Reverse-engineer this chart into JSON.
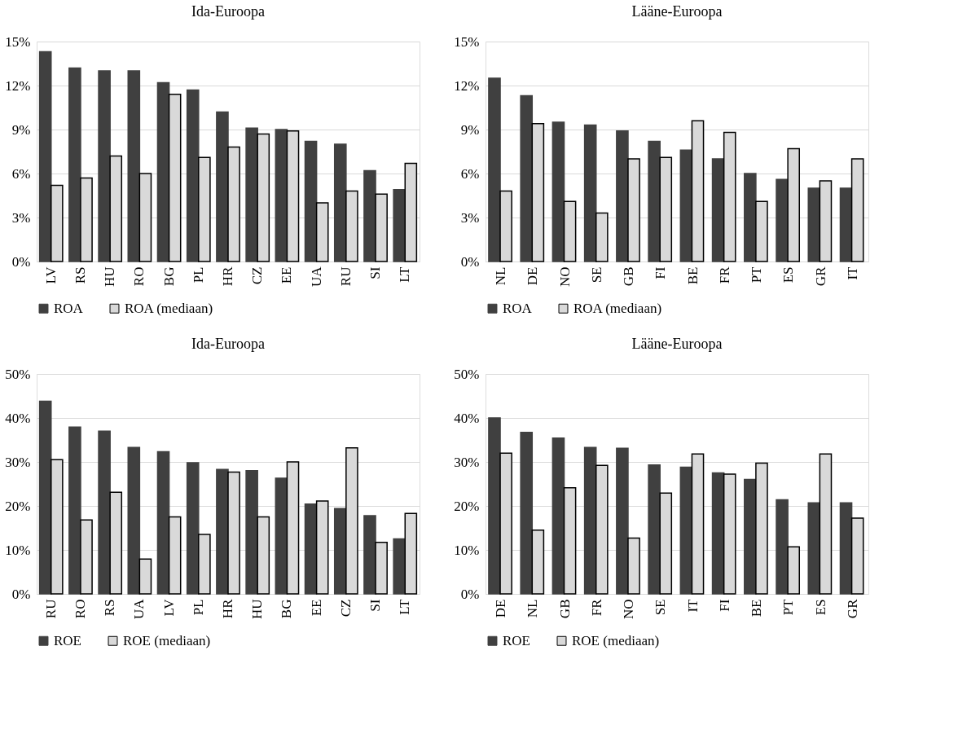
{
  "chart_data": [
    {
      "type": "bar",
      "title": "Ida-Euroopa",
      "categories": [
        "LV",
        "RS",
        "HU",
        "RO",
        "BG",
        "PL",
        "HR",
        "CZ",
        "EE",
        "UA",
        "RU",
        "SI",
        "LT"
      ],
      "series": [
        {
          "name": "ROA",
          "color": "#404040",
          "values": [
            14.3,
            13.2,
            13.0,
            13.0,
            12.2,
            11.7,
            10.2,
            9.1,
            9.0,
            8.2,
            8.0,
            6.2,
            4.9
          ]
        },
        {
          "name": "ROA (mediaan)",
          "color": "#d9d9d9",
          "values": [
            5.2,
            5.7,
            7.2,
            6.0,
            11.4,
            7.1,
            7.8,
            8.7,
            8.9,
            4.0,
            4.8,
            4.6,
            6.7
          ]
        }
      ],
      "ylim": [
        0,
        15
      ],
      "yticks": [
        {
          "value": 0,
          "label": "0%"
        },
        {
          "value": 3,
          "label": "3%"
        },
        {
          "value": 6,
          "label": "6%"
        },
        {
          "value": 9,
          "label": "9%"
        },
        {
          "value": 12,
          "label": "12%"
        },
        {
          "value": 15,
          "label": "15%"
        }
      ],
      "grid": "y",
      "legend": "bottom"
    },
    {
      "type": "bar",
      "title": "Lääne-Euroopa",
      "categories": [
        "NL",
        "DE",
        "NO",
        "SE",
        "GB",
        "FI",
        "BE",
        "FR",
        "PT",
        "ES",
        "GR",
        "IT"
      ],
      "series": [
        {
          "name": "ROA",
          "color": "#404040",
          "values": [
            12.5,
            11.3,
            9.5,
            9.3,
            8.9,
            8.2,
            7.6,
            7.0,
            6.0,
            5.6,
            5.0,
            5.0
          ]
        },
        {
          "name": "ROA (mediaan)",
          "color": "#d9d9d9",
          "values": [
            4.8,
            9.4,
            4.1,
            3.3,
            7.0,
            7.1,
            9.6,
            8.8,
            4.1,
            7.7,
            5.5,
            7.0
          ]
        }
      ],
      "ylim": [
        0,
        15
      ],
      "yticks": [
        {
          "value": 0,
          "label": "0%"
        },
        {
          "value": 3,
          "label": "3%"
        },
        {
          "value": 6,
          "label": "6%"
        },
        {
          "value": 9,
          "label": "9%"
        },
        {
          "value": 12,
          "label": "12%"
        },
        {
          "value": 15,
          "label": "15%"
        }
      ],
      "grid": "y",
      "legend": "bottom"
    },
    {
      "type": "bar",
      "title": "Ida-Euroopa",
      "categories": [
        "RU",
        "RO",
        "RS",
        "UA",
        "LV",
        "PL",
        "HR",
        "HU",
        "BG",
        "EE",
        "CZ",
        "SI",
        "LT"
      ],
      "series": [
        {
          "name": "ROE",
          "color": "#404040",
          "values": [
            43.8,
            37.9,
            37.0,
            33.3,
            32.3,
            29.8,
            28.3,
            28.0,
            26.3,
            20.4,
            19.4,
            17.8,
            12.5
          ]
        },
        {
          "name": "ROE (mediaan)",
          "color": "#d9d9d9",
          "values": [
            30.5,
            16.8,
            23.1,
            7.9,
            17.5,
            13.5,
            27.7,
            17.5,
            30.0,
            21.1,
            33.2,
            11.7,
            18.3
          ]
        }
      ],
      "ylim": [
        0,
        50
      ],
      "yticks": [
        {
          "value": 0,
          "label": "0%"
        },
        {
          "value": 10,
          "label": "10%"
        },
        {
          "value": 20,
          "label": "20%"
        },
        {
          "value": 30,
          "label": "30%"
        },
        {
          "value": 40,
          "label": "40%"
        },
        {
          "value": 50,
          "label": "50%"
        }
      ],
      "grid": "y",
      "legend": "bottom"
    },
    {
      "type": "bar",
      "title": "Lääne-Euroopa",
      "categories": [
        "DE",
        "NL",
        "GB",
        "FR",
        "NO",
        "SE",
        "IT",
        "FI",
        "BE",
        "PT",
        "ES",
        "GR"
      ],
      "series": [
        {
          "name": "ROE",
          "color": "#404040",
          "values": [
            40.0,
            36.7,
            35.4,
            33.3,
            33.1,
            29.3,
            28.8,
            27.5,
            26.0,
            21.4,
            20.7,
            20.7
          ]
        },
        {
          "name": "ROE (mediaan)",
          "color": "#d9d9d9",
          "values": [
            32.0,
            14.5,
            24.1,
            29.2,
            12.7,
            22.9,
            31.8,
            27.2,
            29.7,
            10.7,
            31.8,
            17.2
          ]
        }
      ],
      "ylim": [
        0,
        50
      ],
      "yticks": [
        {
          "value": 0,
          "label": "0%"
        },
        {
          "value": 10,
          "label": "10%"
        },
        {
          "value": 20,
          "label": "20%"
        },
        {
          "value": 30,
          "label": "30%"
        },
        {
          "value": 40,
          "label": "40%"
        },
        {
          "value": 50,
          "label": "50%"
        }
      ],
      "grid": "y",
      "legend": "bottom"
    }
  ]
}
